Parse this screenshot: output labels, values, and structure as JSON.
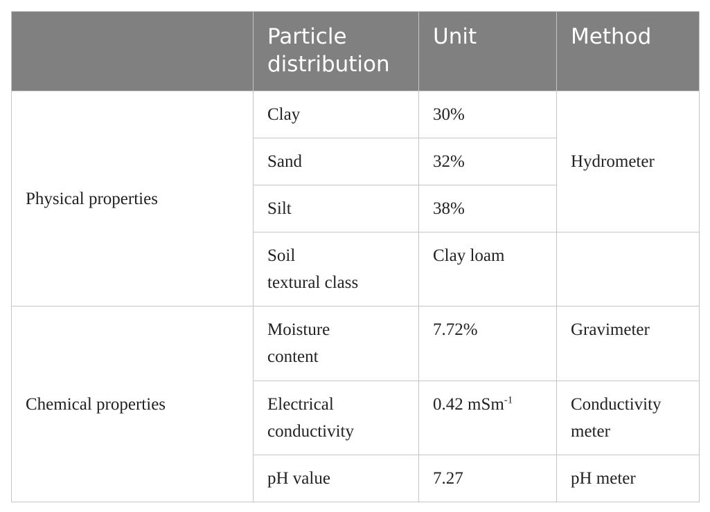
{
  "table": {
    "header": [
      "Particle\ndistribution",
      "Unit",
      "Method"
    ],
    "groups": [
      {
        "label": "Physical properties",
        "rows": [
          [
            "Clay",
            "30%"
          ],
          [
            "Sand",
            "32%"
          ],
          [
            "Silt",
            "38%"
          ],
          [
            "Soil\ntextural class",
            "Clay loam"
          ]
        ],
        "method": "Hydrometer"
      },
      {
        "label": "Chemical properties",
        "rows": [
          {
            "name": "Moisture\ncontent",
            "unit": "7.72%",
            "method": "Gravimeter"
          },
          {
            "name": "Electrical\nconductivity",
            "unit": {
              "text": "0.42 mSm",
              "sup": "-1"
            },
            "method": "Conductivity\nmeter"
          },
          {
            "name": "pH value",
            "unit": "7.27",
            "method": "pH meter"
          }
        ]
      }
    ]
  }
}
